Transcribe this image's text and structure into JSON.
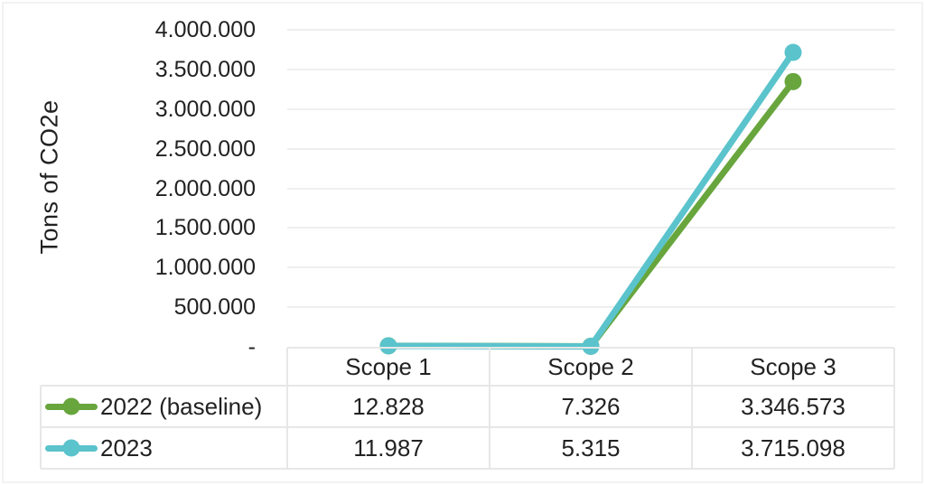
{
  "chart_data": {
    "type": "line",
    "title": "",
    "xlabel": "",
    "ylabel": "Tons of CO2e",
    "categories": [
      "Scope 1",
      "Scope 2",
      "Scope 3"
    ],
    "series": [
      {
        "name": "2022 (baseline)",
        "color": "#68a63d",
        "values": [
          12828,
          7326,
          3346573
        ],
        "value_labels": [
          "12.828",
          "7.326",
          "3.346.573"
        ]
      },
      {
        "name": "2023",
        "color": "#5bc3cc",
        "values": [
          11987,
          5315,
          3715098
        ],
        "value_labels": [
          "11.987",
          "5.315",
          "3.715.098"
        ]
      }
    ],
    "ylim": [
      0,
      4000000
    ],
    "yticks": [
      {
        "value": 0,
        "label": "-"
      },
      {
        "value": 500000,
        "label": "500.000"
      },
      {
        "value": 1000000,
        "label": "1.000.000"
      },
      {
        "value": 1500000,
        "label": "1.500.000"
      },
      {
        "value": 2000000,
        "label": "2.000.000"
      },
      {
        "value": 2500000,
        "label": "2.500.000"
      },
      {
        "value": 3000000,
        "label": "3.000.000"
      },
      {
        "value": 3500000,
        "label": "3.500.000"
      },
      {
        "value": 4000000,
        "label": "4.000.000"
      }
    ],
    "grid": true,
    "legend_position": "data-table-left",
    "data_table_shown": true,
    "marker": "circle"
  },
  "colors": {
    "background": "#ffffff",
    "text": "#222222",
    "gridline": "#efefef",
    "table_border": "#e7e7e7",
    "frame": "#f2f2f2",
    "series_2022": "#68a63d",
    "series_2023": "#5bc3cc"
  }
}
